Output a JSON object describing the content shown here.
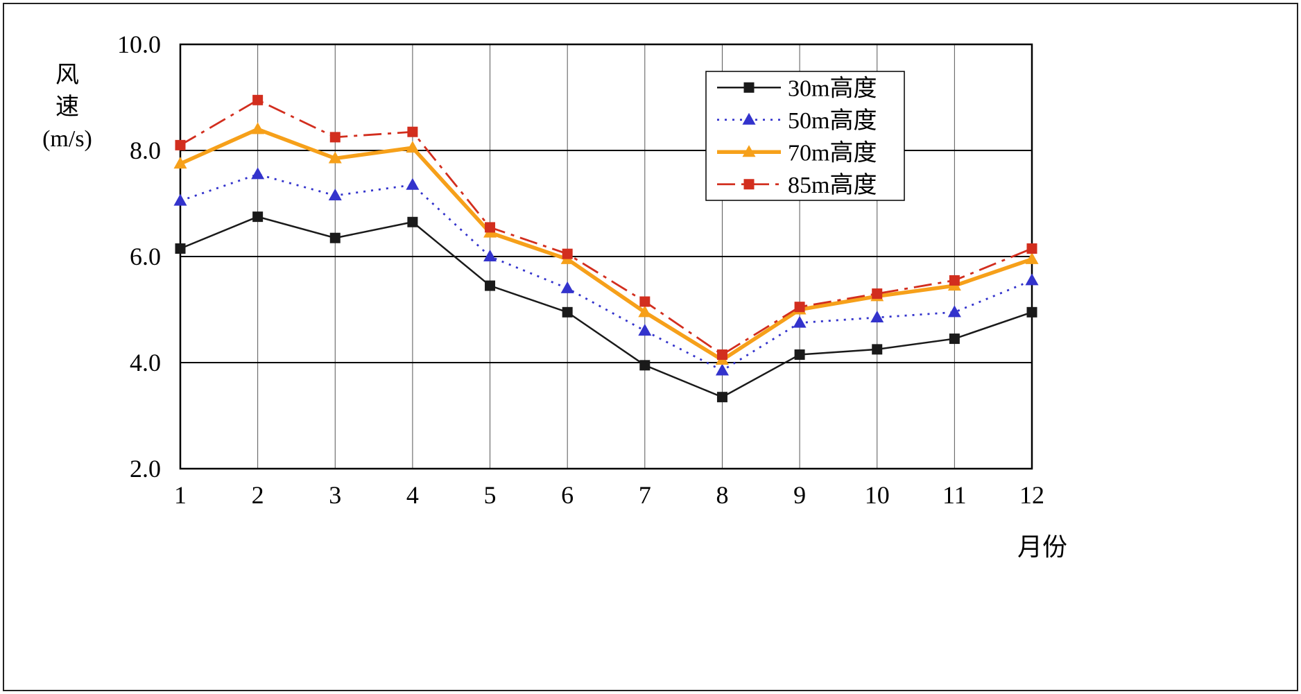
{
  "chart_data": {
    "type": "line",
    "title": "",
    "xlabel": "月份",
    "ylabel": "风速(m/s)",
    "ylabel_lines": [
      "风",
      "速",
      "(m/s)"
    ],
    "x": [
      1,
      2,
      3,
      4,
      5,
      6,
      7,
      8,
      9,
      10,
      11,
      12
    ],
    "ylim": [
      2.0,
      10.0
    ],
    "ytick_values": [
      10,
      8,
      6,
      4,
      2
    ],
    "ytick_labels": [
      "10.0",
      "8.0",
      "6.0",
      "4.0",
      "2.0"
    ],
    "grid": true,
    "legend_position": "top-right",
    "series": [
      {
        "name": "30m高度",
        "color": "#1a1a1a",
        "line": "solid",
        "marker": "square",
        "values": [
          6.15,
          6.75,
          6.35,
          6.65,
          5.45,
          4.95,
          3.95,
          3.35,
          4.15,
          4.25,
          4.45,
          4.95
        ]
      },
      {
        "name": "50m高度",
        "color": "#3333cc",
        "line": "dotted",
        "marker": "triangle",
        "values": [
          7.05,
          7.55,
          7.15,
          7.35,
          6.0,
          5.4,
          4.6,
          3.85,
          4.75,
          4.85,
          4.95,
          5.55
        ]
      },
      {
        "name": "70m高度",
        "color": "#f6a01a",
        "line": "solid-thick",
        "marker": "triangle",
        "values": [
          7.75,
          8.4,
          7.85,
          8.05,
          6.45,
          5.95,
          4.95,
          4.05,
          5.0,
          5.25,
          5.45,
          5.95
        ]
      },
      {
        "name": "85m高度",
        "color": "#d22e1e",
        "line": "dashdot",
        "marker": "square",
        "values": [
          8.1,
          8.95,
          8.25,
          8.35,
          6.55,
          6.05,
          5.15,
          4.15,
          5.05,
          5.3,
          5.55,
          6.15
        ]
      }
    ]
  }
}
